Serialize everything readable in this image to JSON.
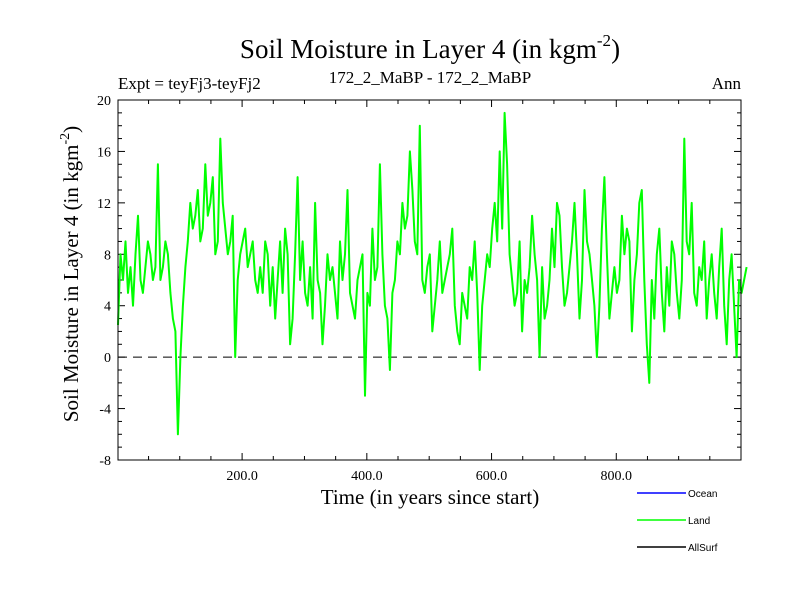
{
  "chart_data": {
    "type": "line",
    "title": "Soil Moisture in Layer 4 (in kgm",
    "title_sup": "-2",
    "title_close": ")",
    "subtitle_left": "Expt = teyFj3-teyFj2",
    "subtitle_center": "172_2_MaBP - 172_2_MaBP",
    "subtitle_right": "Ann",
    "xlabel": "Time (in years since start)",
    "ylabel": "Soil Moisture in Layer 4 (in kgm",
    "ylabel_sup": "-2",
    "ylabel_close": ")",
    "xlim": [
      1,
      1000
    ],
    "ylim": [
      -8,
      20
    ],
    "xticks": [
      200,
      400,
      600,
      800
    ],
    "xtick_labels": [
      "200.0",
      "400.0",
      "600.0",
      "800.0"
    ],
    "yticks": [
      -8,
      -4,
      0,
      4,
      8,
      12,
      16,
      20
    ],
    "ytick_labels": [
      "-8",
      "-4",
      "0",
      "4",
      "8",
      "12",
      "16",
      "20"
    ],
    "zero_line": 0,
    "legend": [
      {
        "name": "Ocean",
        "color": "#0000ff"
      },
      {
        "name": "Land",
        "color": "#00ff00"
      },
      {
        "name": "AllSurf",
        "color": "#000000"
      }
    ],
    "series": [
      {
        "name": "Land",
        "color": "#00ff00",
        "x_start": 1,
        "x_step": 4,
        "values": [
          2.5,
          8,
          6,
          9,
          5,
          7,
          4,
          8,
          11,
          6,
          5,
          7,
          9,
          8,
          6,
          7,
          15,
          6,
          7,
          9,
          8,
          5,
          3,
          2,
          -6,
          0,
          4,
          7,
          9,
          12,
          10,
          11,
          13,
          9,
          10,
          15,
          11,
          12,
          14,
          8,
          9,
          17,
          12,
          10,
          8,
          9,
          11,
          0,
          6,
          8,
          9,
          10,
          7,
          8,
          9,
          6,
          5,
          7,
          5,
          9,
          8,
          4,
          7,
          3,
          6,
          9,
          5,
          10,
          8,
          1,
          3,
          8,
          14,
          6,
          9,
          5,
          4,
          7,
          3,
          12,
          6,
          5,
          1,
          4,
          8,
          6,
          7,
          5,
          3,
          9,
          6,
          8,
          13,
          5,
          4,
          3,
          6,
          7,
          8,
          -3,
          5,
          4,
          10,
          6,
          7,
          15,
          8,
          4,
          3,
          -1,
          5,
          6,
          9,
          8,
          12,
          10,
          11,
          16,
          13,
          9,
          8,
          18,
          6,
          5,
          7,
          8,
          2,
          4,
          6,
          9,
          5,
          6,
          7,
          8,
          10,
          4,
          2,
          1,
          5,
          4,
          3,
          7,
          6,
          9,
          5,
          -1,
          4,
          6,
          8,
          7,
          10,
          12,
          9,
          16,
          10,
          19,
          15,
          8,
          6,
          4,
          5,
          9,
          2,
          6,
          5,
          7,
          11,
          8,
          6,
          0,
          7,
          3,
          4,
          6,
          10,
          7,
          12,
          11,
          7,
          4,
          5,
          7,
          9,
          12,
          8,
          3,
          6,
          13,
          9,
          8,
          6,
          4,
          0,
          4,
          10,
          14,
          8,
          3,
          5,
          7,
          5,
          6,
          11,
          8,
          10,
          9,
          2,
          6,
          8,
          12,
          13,
          6,
          1,
          -2,
          6,
          3,
          8,
          10,
          5,
          2,
          7,
          4,
          9,
          8,
          5,
          3,
          6,
          17,
          9,
          8,
          12,
          5,
          4,
          7,
          6,
          9,
          3,
          6,
          8,
          5,
          3,
          7,
          10,
          4,
          1,
          6,
          8,
          4,
          0,
          6,
          5,
          6,
          7
        ]
      }
    ]
  }
}
